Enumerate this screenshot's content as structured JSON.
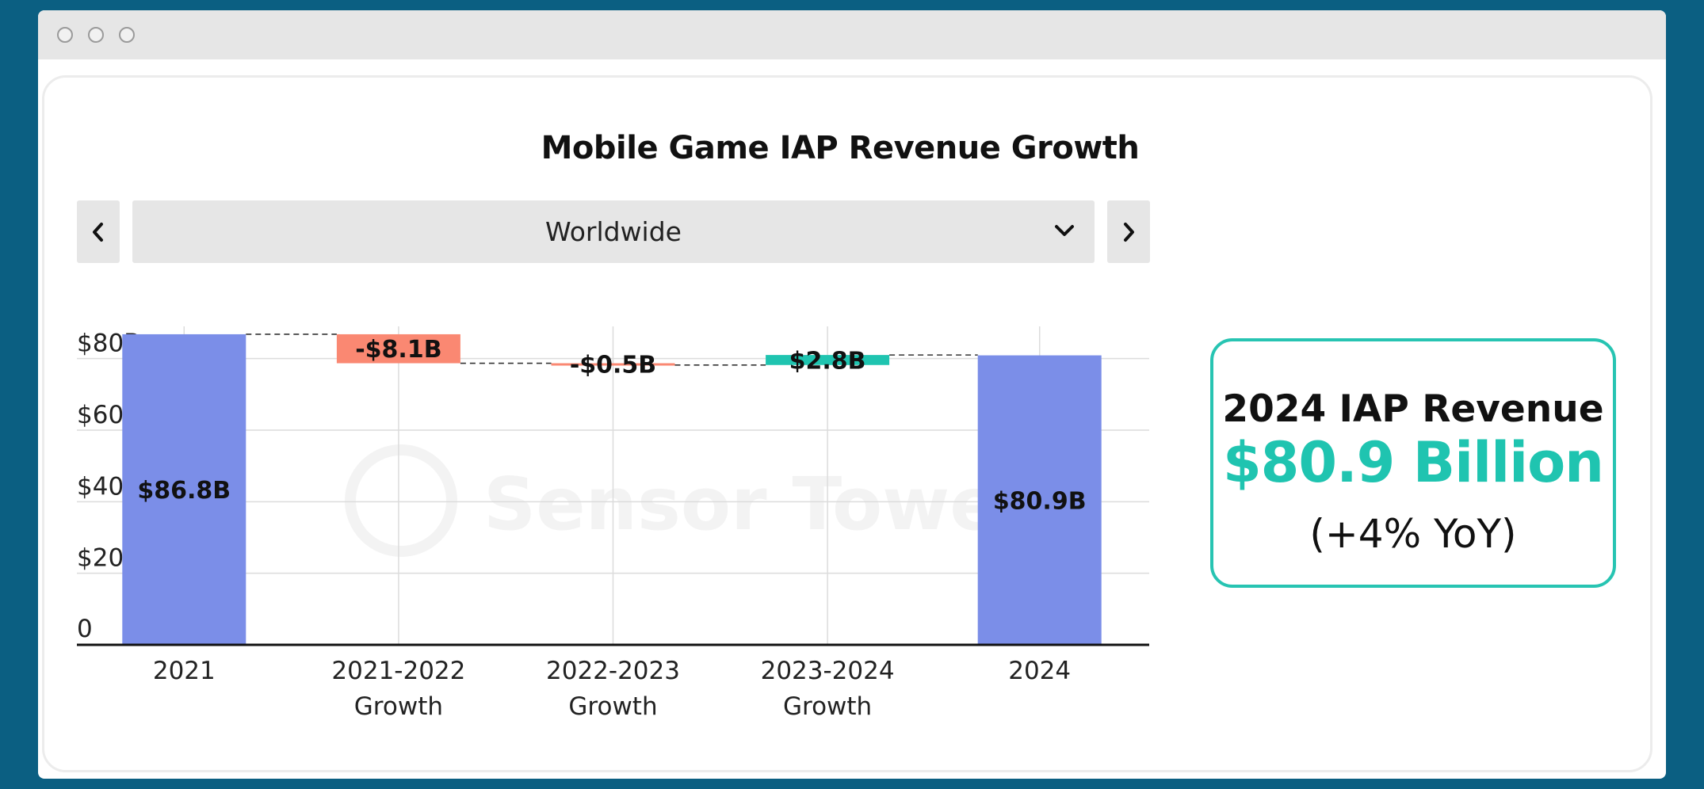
{
  "window": {
    "buttons": [
      "close",
      "minimize",
      "maximize"
    ]
  },
  "header": {
    "title": "Mobile Game IAP Revenue Growth"
  },
  "region_selector": {
    "prev_icon": "chevron-left-icon",
    "next_icon": "chevron-right-icon",
    "dropdown_icon": "chevron-down-icon",
    "selected": "Worldwide"
  },
  "watermark": "Sensor Tower",
  "kpi": {
    "title": "2024 IAP Revenue",
    "value": "$80.9 Billion",
    "subtitle": "(+4% YoY)",
    "accent_color": "#1fc4b0"
  },
  "chart_data": {
    "type": "waterfall",
    "title": "",
    "xlabel": "",
    "ylabel": "",
    "ylim": [
      0,
      90
    ],
    "yticks": [
      0,
      20,
      40,
      60,
      80
    ],
    "ytick_labels": [
      "0",
      "$20B",
      "$40B",
      "$60B",
      "$80B"
    ],
    "grid": true,
    "categories": [
      [
        "2021"
      ],
      [
        "2021-2022",
        "Growth"
      ],
      [
        "2022-2023",
        "Growth"
      ],
      [
        "2023-2024",
        "Growth"
      ],
      [
        "2024"
      ]
    ],
    "values": [
      86.8,
      -8.1,
      -0.5,
      2.8,
      80.9
    ],
    "kinds": [
      "total",
      "delta",
      "delta",
      "delta",
      "total"
    ],
    "data_labels": [
      "$86.8B",
      "-$8.1B",
      "-$0.5B",
      "$2.8B",
      "$80.9B"
    ],
    "colors": {
      "total": "#7b8ee8",
      "decrease": "#fa8872",
      "increase": "#1fc4b0"
    }
  }
}
